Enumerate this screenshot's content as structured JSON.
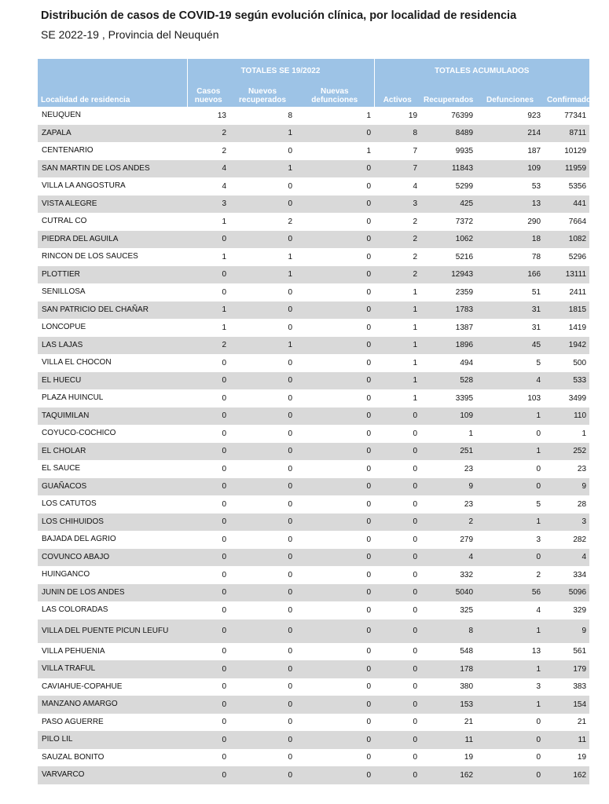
{
  "title": "Distribución de casos de COVID-19 según evolución clínica, por localidad de residencia",
  "subtitle": "SE 2022-19 , Provincia del Neuquén",
  "table": {
    "group_headers": {
      "week": "TOTALES SE 19/2022",
      "cumulative": "TOTALES ACUMULADOS"
    },
    "columns": {
      "locality": "Localidad de residencia",
      "new_cases": [
        "Casos",
        "nuevos"
      ],
      "new_recovered": [
        "Nuevos",
        "recuperados"
      ],
      "new_deaths": [
        "Nuevas",
        "defunciones"
      ],
      "active": "Activos",
      "recovered": "Recuperados",
      "deaths": "Defunciones",
      "confirmed": "Confirmados"
    },
    "rows": [
      [
        "NEUQUEN",
        "13",
        "8",
        "1",
        "19",
        "76399",
        "923",
        "77341"
      ],
      [
        "ZAPALA",
        "2",
        "1",
        "0",
        "8",
        "8489",
        "214",
        "8711"
      ],
      [
        "CENTENARIO",
        "2",
        "0",
        "1",
        "7",
        "9935",
        "187",
        "10129"
      ],
      [
        "SAN MARTIN DE LOS ANDES",
        "4",
        "1",
        "0",
        "7",
        "11843",
        "109",
        "11959"
      ],
      [
        "VILLA LA ANGOSTURA",
        "4",
        "0",
        "0",
        "4",
        "5299",
        "53",
        "5356"
      ],
      [
        "VISTA ALEGRE",
        "3",
        "0",
        "0",
        "3",
        "425",
        "13",
        "441"
      ],
      [
        "CUTRAL CO",
        "1",
        "2",
        "0",
        "2",
        "7372",
        "290",
        "7664"
      ],
      [
        "PIEDRA DEL AGUILA",
        "0",
        "0",
        "0",
        "2",
        "1062",
        "18",
        "1082"
      ],
      [
        "RINCON DE LOS SAUCES",
        "1",
        "1",
        "0",
        "2",
        "5216",
        "78",
        "5296"
      ],
      [
        "PLOTTIER",
        "0",
        "1",
        "0",
        "2",
        "12943",
        "166",
        "13111"
      ],
      [
        "SENILLOSA",
        "0",
        "0",
        "0",
        "1",
        "2359",
        "51",
        "2411"
      ],
      [
        "SAN PATRICIO DEL CHAÑAR",
        "1",
        "0",
        "0",
        "1",
        "1783",
        "31",
        "1815"
      ],
      [
        "LONCOPUE",
        "1",
        "0",
        "0",
        "1",
        "1387",
        "31",
        "1419"
      ],
      [
        "LAS LAJAS",
        "2",
        "1",
        "0",
        "1",
        "1896",
        "45",
        "1942"
      ],
      [
        "VILLA EL CHOCON",
        "0",
        "0",
        "0",
        "1",
        "494",
        "5",
        "500"
      ],
      [
        "EL HUECU",
        "0",
        "0",
        "0",
        "1",
        "528",
        "4",
        "533"
      ],
      [
        "PLAZA HUINCUL",
        "0",
        "0",
        "0",
        "1",
        "3395",
        "103",
        "3499"
      ],
      [
        "TAQUIMILAN",
        "0",
        "0",
        "0",
        "0",
        "109",
        "1",
        "110"
      ],
      [
        "COYUCO-COCHICO",
        "0",
        "0",
        "0",
        "0",
        "1",
        "0",
        "1"
      ],
      [
        "EL CHOLAR",
        "0",
        "0",
        "0",
        "0",
        "251",
        "1",
        "252"
      ],
      [
        "EL SAUCE",
        "0",
        "0",
        "0",
        "0",
        "23",
        "0",
        "23"
      ],
      [
        "GUAÑACOS",
        "0",
        "0",
        "0",
        "0",
        "9",
        "0",
        "9"
      ],
      [
        "LOS CATUTOS",
        "0",
        "0",
        "0",
        "0",
        "23",
        "5",
        "28"
      ],
      [
        "LOS CHIHUIDOS",
        "0",
        "0",
        "0",
        "0",
        "2",
        "1",
        "3"
      ],
      [
        "BAJADA DEL AGRIO",
        "0",
        "0",
        "0",
        "0",
        "279",
        "3",
        "282"
      ],
      [
        "COVUNCO ABAJO",
        "0",
        "0",
        "0",
        "0",
        "4",
        "0",
        "4"
      ],
      [
        "HUINGANCO",
        "0",
        "0",
        "0",
        "0",
        "332",
        "2",
        "334"
      ],
      [
        "JUNIN DE LOS ANDES",
        "0",
        "0",
        "0",
        "0",
        "5040",
        "56",
        "5096"
      ],
      [
        "LAS COLORADAS",
        "0",
        "0",
        "0",
        "0",
        "325",
        "4",
        "329"
      ],
      [
        "VILLA DEL PUENTE PICUN LEUFU",
        "0",
        "0",
        "0",
        "0",
        "8",
        "1",
        "9"
      ],
      [
        "VILLA PEHUENIA",
        "0",
        "0",
        "0",
        "0",
        "548",
        "13",
        "561"
      ],
      [
        "VILLA TRAFUL",
        "0",
        "0",
        "0",
        "0",
        "178",
        "1",
        "179"
      ],
      [
        "CAVIAHUE-COPAHUE",
        "0",
        "0",
        "0",
        "0",
        "380",
        "3",
        "383"
      ],
      [
        "MANZANO AMARGO",
        "0",
        "0",
        "0",
        "0",
        "153",
        "1",
        "154"
      ],
      [
        "PASO AGUERRE",
        "0",
        "0",
        "0",
        "0",
        "21",
        "0",
        "21"
      ],
      [
        "PILO LIL",
        "0",
        "0",
        "0",
        "0",
        "11",
        "0",
        "11"
      ],
      [
        "SAUZAL BONITO",
        "0",
        "0",
        "0",
        "0",
        "19",
        "0",
        "19"
      ],
      [
        "VARVARCO",
        "0",
        "0",
        "0",
        "0",
        "162",
        "0",
        "162"
      ]
    ]
  }
}
